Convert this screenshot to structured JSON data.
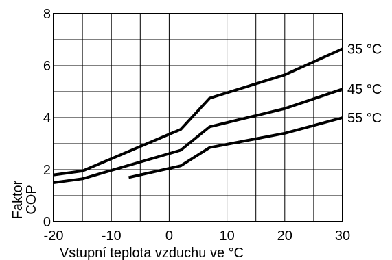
{
  "chart_data": {
    "type": "line",
    "title": "",
    "xlabel": "Vstupní teplota vzduchu ve °C",
    "ylabel_lines": [
      "Faktor",
      "COP"
    ],
    "xlim": [
      -20,
      30
    ],
    "ylim": [
      0,
      8
    ],
    "x_ticks": [
      -20,
      -10,
      0,
      10,
      20,
      30
    ],
    "y_ticks": [
      0,
      2,
      4,
      6,
      8
    ],
    "grid": true,
    "series": [
      {
        "name": "35 °C",
        "x": [
          -20,
          -15,
          2,
          7,
          20,
          30
        ],
        "y": [
          1.8,
          1.95,
          3.55,
          4.75,
          5.65,
          6.65
        ]
      },
      {
        "name": "45 °C",
        "x": [
          -20,
          -15,
          2,
          7,
          20,
          30
        ],
        "y": [
          1.5,
          1.65,
          2.75,
          3.65,
          4.35,
          5.1
        ]
      },
      {
        "name": "55 °C",
        "x": [
          -7,
          2,
          7,
          20,
          30
        ],
        "y": [
          1.7,
          2.15,
          2.85,
          3.4,
          4.0
        ]
      }
    ]
  }
}
